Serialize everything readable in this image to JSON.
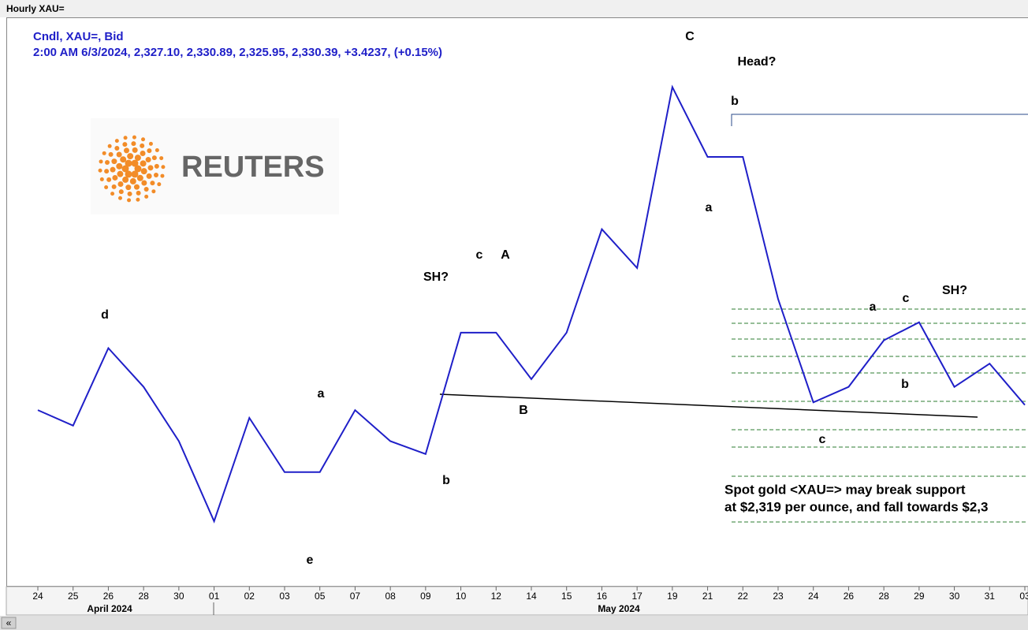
{
  "chart_data": {
    "type": "line",
    "title": "Hourly XAU=",
    "legend_lines": [
      "Cndl, XAU=, Bid",
      "2:00 AM 6/3/2024, 2,327.10, 2,330.89, 2,325.95, 2,330.39, +3.4237, (+0.15%)"
    ],
    "logo_text": "REUTERS",
    "categories": [
      "24",
      "25",
      "26",
      "28",
      "30",
      "01",
      "02",
      "03",
      "05",
      "07",
      "08",
      "09",
      "10",
      "12",
      "14",
      "15",
      "16",
      "17",
      "19",
      "21",
      "22",
      "23",
      "24",
      "26",
      "28",
      "29",
      "30",
      "31",
      "03"
    ],
    "month_labels": [
      "April 2024",
      "May 2024"
    ],
    "series": [
      {
        "name": "XAU=",
        "color": "#1f1fc8",
        "values": [
          2319,
          2313,
          2343,
          2328,
          2307,
          2276,
          2316,
          2295,
          2295,
          2319,
          2307,
          2302,
          2349,
          2349,
          2331,
          2349,
          2389,
          2374,
          2444,
          2417,
          2417,
          2362,
          2322,
          2328,
          2346,
          2353,
          2328,
          2337,
          2321
        ]
      }
    ],
    "ylim": [
      2251,
      2471
    ],
    "annotations": [
      "d",
      "a",
      "b",
      "e",
      "SH?",
      "c",
      "A",
      "B",
      "C",
      "Head?",
      "b",
      "a",
      "a",
      "c",
      "b",
      "c",
      "SH?"
    ],
    "note_lines": [
      "Spot gold <XAU=> may break support",
      "at $2,319 per ounce,  and fall towards $2,3"
    ]
  }
}
